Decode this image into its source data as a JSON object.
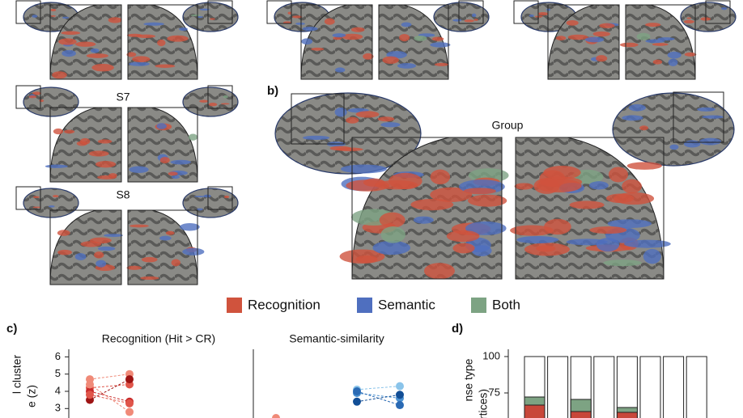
{
  "panels": {
    "subjects": [
      {
        "label": "S7"
      },
      {
        "label": "S8"
      }
    ],
    "b": {
      "tag": "b)",
      "title": "Group"
    },
    "legend": [
      "Recognition",
      "Semantic",
      "Both"
    ],
    "c": {
      "tag": "c)",
      "titles": [
        "Recognition (Hit > CR)",
        "Semantic-similarity"
      ],
      "ylabel_fragments": [
        "l cluster",
        "e (z)"
      ],
      "yticks": [
        6,
        5,
        4,
        3
      ]
    },
    "d": {
      "tag": "d)",
      "ylabel_fragments": [
        "nse type",
        "rtices)"
      ],
      "yticks": [
        100,
        75
      ]
    }
  }
}
